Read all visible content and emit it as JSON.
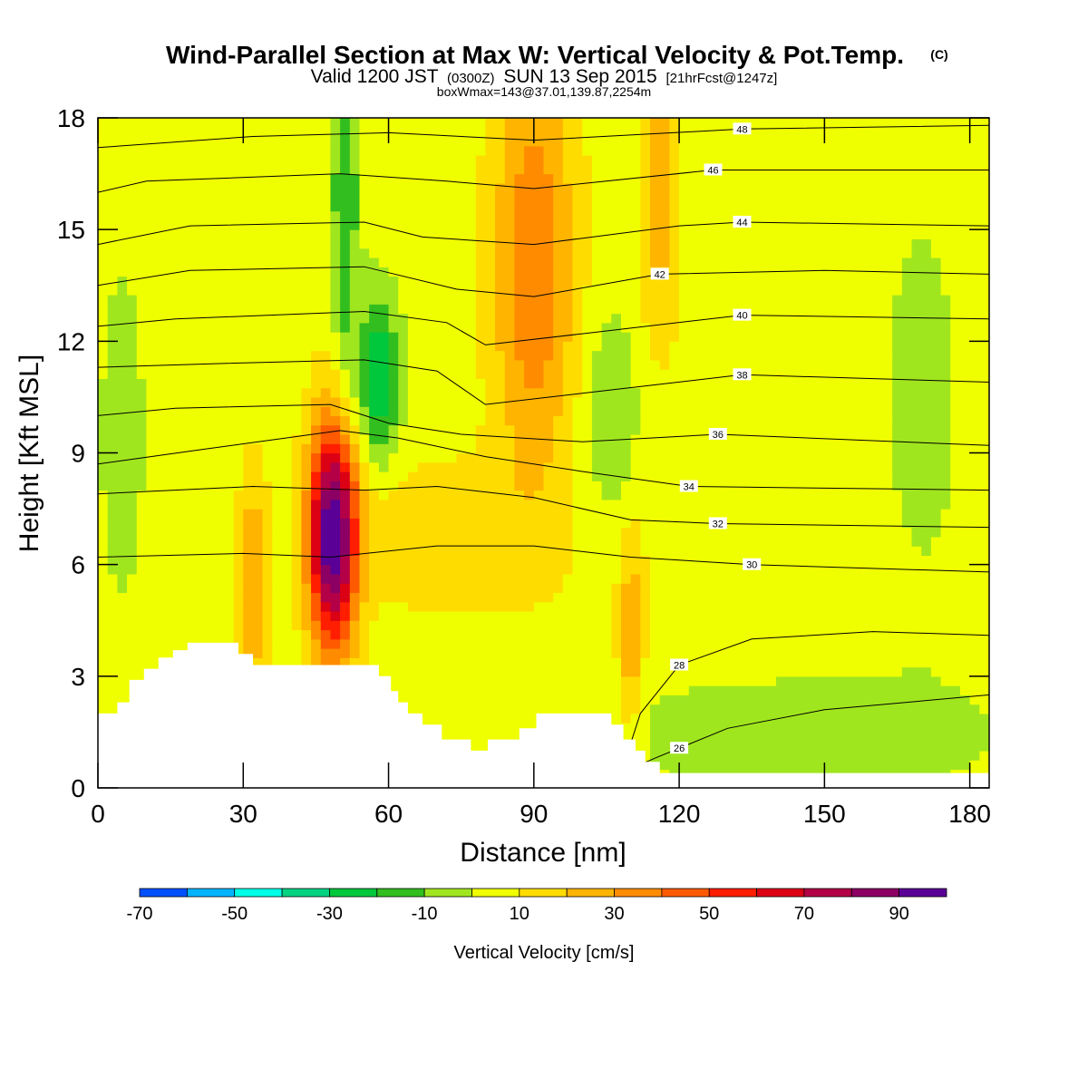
{
  "header": {
    "title": "Wind-Parallel Section at Max W: Vertical Velocity & Pot.Temp.",
    "copyright": "(C)",
    "valid_prefix": "Valid 1200 JST",
    "valid_utc": "(0300Z)",
    "valid_date": "SUN 13 Sep 2015",
    "forecast": "[21hrFcst@1247z]",
    "box_info": "boxWmax=143@37.01,139.87,2254m"
  },
  "chart_data": {
    "type": "heatmap",
    "description_kind": "vertical cross-section: filled contours of vertical velocity with theta contour lines",
    "xlabel": "Distance [nm]",
    "ylabel": "Height [Kft MSL]",
    "xlim": [
      0,
      184
    ],
    "ylim": [
      0,
      18
    ],
    "xticks": [
      0,
      30,
      60,
      90,
      120,
      150,
      180
    ],
    "yticks": [
      0,
      3,
      6,
      9,
      12,
      15,
      18
    ],
    "colorbar": {
      "title": "Vertical Velocity [cm/s]",
      "bounds": [
        -80,
        -70,
        -60,
        -50,
        -40,
        -30,
        -20,
        -10,
        0,
        10,
        20,
        30,
        40,
        50,
        60,
        70,
        80,
        90,
        100
      ],
      "tick_labels": [
        "-70",
        "-50",
        "-30",
        "-10",
        "10",
        "30",
        "50",
        "70",
        "90"
      ],
      "tick_values": [
        -70,
        -50,
        -30,
        -10,
        10,
        30,
        50,
        70,
        90
      ],
      "colors": [
        "#0000ff",
        "#0050ff",
        "#00b4ff",
        "#00ffe6",
        "#00d282",
        "#00c83c",
        "#32be1e",
        "#a0e61e",
        "#f0ff00",
        "#ffdc00",
        "#ffb400",
        "#ff8c00",
        "#ff5a00",
        "#ff1e00",
        "#dc0014",
        "#b40046",
        "#8c0064",
        "#5a0096"
      ]
    },
    "terrain_kft": [
      [
        0,
        2
      ],
      [
        4,
        2
      ],
      [
        4,
        2.3
      ],
      [
        6.5,
        2.3
      ],
      [
        6.5,
        2.9
      ],
      [
        9.5,
        2.9
      ],
      [
        9.5,
        3.2
      ],
      [
        12.5,
        3.2
      ],
      [
        12.5,
        3.5
      ],
      [
        15.5,
        3.5
      ],
      [
        15.5,
        3.7
      ],
      [
        18.5,
        3.7
      ],
      [
        18.5,
        3.9
      ],
      [
        29,
        3.9
      ],
      [
        29,
        3.6
      ],
      [
        32,
        3.6
      ],
      [
        32,
        3.3
      ],
      [
        58,
        3.3
      ],
      [
        58,
        3.0
      ],
      [
        60.5,
        3.0
      ],
      [
        60.5,
        2.6
      ],
      [
        62,
        2.6
      ],
      [
        62,
        2.3
      ],
      [
        64,
        2.3
      ],
      [
        64,
        2.0
      ],
      [
        67,
        2.0
      ],
      [
        67,
        1.7
      ],
      [
        71,
        1.7
      ],
      [
        71,
        1.3
      ],
      [
        77,
        1.3
      ],
      [
        77,
        1.0
      ],
      [
        80.5,
        1.0
      ],
      [
        80.5,
        1.3
      ],
      [
        87,
        1.3
      ],
      [
        87,
        1.6
      ],
      [
        90.5,
        1.6
      ],
      [
        90.5,
        2.0
      ],
      [
        106,
        2.0
      ],
      [
        106,
        1.7
      ],
      [
        108.5,
        1.7
      ],
      [
        108.5,
        1.3
      ],
      [
        111,
        1.3
      ],
      [
        111,
        1.0
      ],
      [
        113,
        1.0
      ],
      [
        113,
        0.7
      ],
      [
        116,
        0.7
      ],
      [
        116,
        0.4
      ],
      [
        184,
        0.4
      ],
      [
        184,
        0
      ],
      [
        0,
        0
      ]
    ],
    "w_field": {
      "base": 5,
      "blobs": [
        {
          "x": 48.5,
          "z": 6.8,
          "sx": 3.5,
          "sz": 2.2,
          "amp": 95,
          "note": "main updraft max"
        },
        {
          "x": 32,
          "z": 5.5,
          "sx": 2.2,
          "sz": 2.2,
          "amp": 25
        },
        {
          "x": 70,
          "z": 6.8,
          "sx": 14,
          "sz": 1.4,
          "amp": 14
        },
        {
          "x": 58,
          "z": 11,
          "sx": 3,
          "sz": 1.6,
          "amp": -35,
          "note": "downdraft"
        },
        {
          "x": 51,
          "z": 16,
          "sx": 2,
          "sz": 4,
          "amp": -25
        },
        {
          "x": 90,
          "z": 14,
          "sx": 6,
          "sz": 4,
          "amp": 35,
          "note": "upper updraft"
        },
        {
          "x": 116,
          "z": 16,
          "sx": 3,
          "sz": 3,
          "amp": 20
        },
        {
          "x": 110,
          "z": 4,
          "sx": 1.8,
          "sz": 2,
          "amp": 22
        },
        {
          "x": 106,
          "z": 10,
          "sx": 4,
          "sz": 2,
          "amp": -15
        },
        {
          "x": 136,
          "z": 6,
          "sx": 25,
          "sz": 2,
          "amp": 4
        },
        {
          "x": 145,
          "z": 1.5,
          "sx": 30,
          "sz": 1.2,
          "amp": -12
        },
        {
          "x": 5,
          "z": 9.5,
          "sx": 3,
          "sz": 3,
          "amp": -14
        },
        {
          "x": 22,
          "z": 15,
          "sx": 1.2,
          "sz": 2,
          "amp": 6
        },
        {
          "x": 170,
          "z": 10,
          "sx": 6,
          "sz": 4,
          "amp": -10
        }
      ]
    },
    "theta_contours": [
      {
        "level": 26,
        "label": "26",
        "label_at": 120,
        "points": [
          [
            108,
            0.4
          ],
          [
            115,
            0.8
          ],
          [
            130,
            1.6
          ],
          [
            150,
            2.1
          ],
          [
            184,
            2.5
          ]
        ]
      },
      {
        "level": 28,
        "label": "28",
        "label_at": 120,
        "points": [
          [
            108,
            0.4
          ],
          [
            112,
            2.0
          ],
          [
            120,
            3.3
          ],
          [
            135,
            4.0
          ],
          [
            160,
            4.2
          ],
          [
            184,
            4.1
          ]
        ]
      },
      {
        "level": 30,
        "label": "30",
        "label_at": 135,
        "points": [
          [
            0,
            6.2
          ],
          [
            30,
            6.3
          ],
          [
            48,
            6.2
          ],
          [
            70,
            6.5
          ],
          [
            90,
            6.5
          ],
          [
            110,
            6.2
          ],
          [
            135,
            6.0
          ],
          [
            184,
            5.8
          ]
        ]
      },
      {
        "level": 32,
        "label": "32",
        "label_at": 128,
        "points": [
          [
            0,
            7.9
          ],
          [
            32,
            8.1
          ],
          [
            55,
            8.0
          ],
          [
            70,
            8.1
          ],
          [
            90,
            7.8
          ],
          [
            110,
            7.2
          ],
          [
            128,
            7.1
          ],
          [
            184,
            7.0
          ]
        ]
      },
      {
        "level": 34,
        "label": "34",
        "label_at": 122,
        "points": [
          [
            0,
            8.7
          ],
          [
            22,
            9.1
          ],
          [
            50,
            9.6
          ],
          [
            62,
            9.4
          ],
          [
            80,
            8.9
          ],
          [
            100,
            8.5
          ],
          [
            122,
            8.1
          ],
          [
            184,
            8.0
          ]
        ]
      },
      {
        "level": 36,
        "label": "36",
        "label_at": 128,
        "points": [
          [
            0,
            10.0
          ],
          [
            16,
            10.2
          ],
          [
            48,
            10.3
          ],
          [
            60,
            9.8
          ],
          [
            75,
            9.5
          ],
          [
            100,
            9.3
          ],
          [
            128,
            9.5
          ],
          [
            184,
            9.2
          ]
        ]
      },
      {
        "level": 38,
        "label": "38",
        "label_at": 133,
        "points": [
          [
            0,
            11.3
          ],
          [
            25,
            11.4
          ],
          [
            55,
            11.5
          ],
          [
            70,
            11.2
          ],
          [
            80,
            10.3
          ],
          [
            100,
            10.6
          ],
          [
            133,
            11.1
          ],
          [
            184,
            10.9
          ]
        ]
      },
      {
        "level": 40,
        "label": "40",
        "label_at": 133,
        "points": [
          [
            0,
            12.4
          ],
          [
            16,
            12.6
          ],
          [
            55,
            12.8
          ],
          [
            72,
            12.5
          ],
          [
            80,
            11.9
          ],
          [
            100,
            12.2
          ],
          [
            133,
            12.7
          ],
          [
            184,
            12.6
          ]
        ]
      },
      {
        "level": 42,
        "label": "42",
        "label_at": 116,
        "points": [
          [
            0,
            13.5
          ],
          [
            19,
            13.9
          ],
          [
            55,
            14.0
          ],
          [
            74,
            13.4
          ],
          [
            90,
            13.2
          ],
          [
            116,
            13.8
          ],
          [
            150,
            13.9
          ],
          [
            184,
            13.8
          ]
        ]
      },
      {
        "level": 44,
        "label": "44",
        "label_at": 133,
        "points": [
          [
            0,
            14.6
          ],
          [
            19,
            15.1
          ],
          [
            55,
            15.2
          ],
          [
            67,
            14.8
          ],
          [
            90,
            14.6
          ],
          [
            120,
            15.1
          ],
          [
            133,
            15.2
          ],
          [
            184,
            15.1
          ]
        ]
      },
      {
        "level": 46,
        "label": "46",
        "label_at": 127,
        "points": [
          [
            0,
            16.0
          ],
          [
            10,
            16.3
          ],
          [
            50,
            16.5
          ],
          [
            72,
            16.3
          ],
          [
            90,
            16.1
          ],
          [
            127,
            16.6
          ],
          [
            184,
            16.6
          ]
        ]
      },
      {
        "level": 48,
        "label": "48",
        "label_at": 133,
        "points": [
          [
            0,
            17.2
          ],
          [
            32,
            17.5
          ],
          [
            60,
            17.6
          ],
          [
            90,
            17.4
          ],
          [
            133,
            17.7
          ],
          [
            184,
            17.8
          ]
        ]
      }
    ]
  }
}
